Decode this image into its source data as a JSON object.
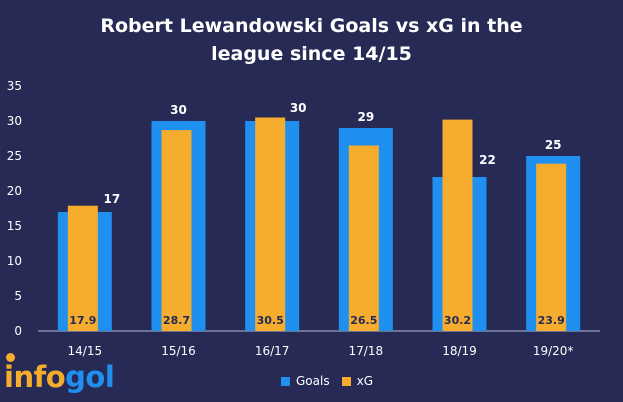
{
  "chart_data": {
    "type": "bar",
    "title_line1": "Robert Lewandowski Goals vs xG in the",
    "title_line2": "league since 14/15",
    "categories": [
      "14/15",
      "15/16",
      "16/17",
      "17/18",
      "18/19",
      "19/20*"
    ],
    "series": [
      {
        "name": "Goals",
        "values": [
          17,
          30,
          30,
          29,
          22,
          25
        ],
        "color": "#1f8ff0"
      },
      {
        "name": "xG",
        "values": [
          17.9,
          28.7,
          30.5,
          26.5,
          30.2,
          23.9
        ],
        "color": "#f6ad2e"
      }
    ],
    "ylim": [
      0,
      35
    ],
    "yticks": [
      "0",
      "5",
      "10",
      "15",
      "20",
      "25",
      "30",
      "35"
    ],
    "goal_labels": [
      "17",
      "30",
      "30",
      "29",
      "22",
      "25"
    ],
    "xg_labels": [
      "17.9",
      "28.7",
      "30.5",
      "26.5",
      "30.2",
      "23.9"
    ],
    "legend_position": "bottom-right",
    "grid": false
  },
  "brand": {
    "logo_text_1": "info",
    "logo_text_2": "gol"
  },
  "colors": {
    "background": "#262a55",
    "goals": "#1f8ff0",
    "xg": "#f6ad2e",
    "axis_text": "#ffffff"
  }
}
